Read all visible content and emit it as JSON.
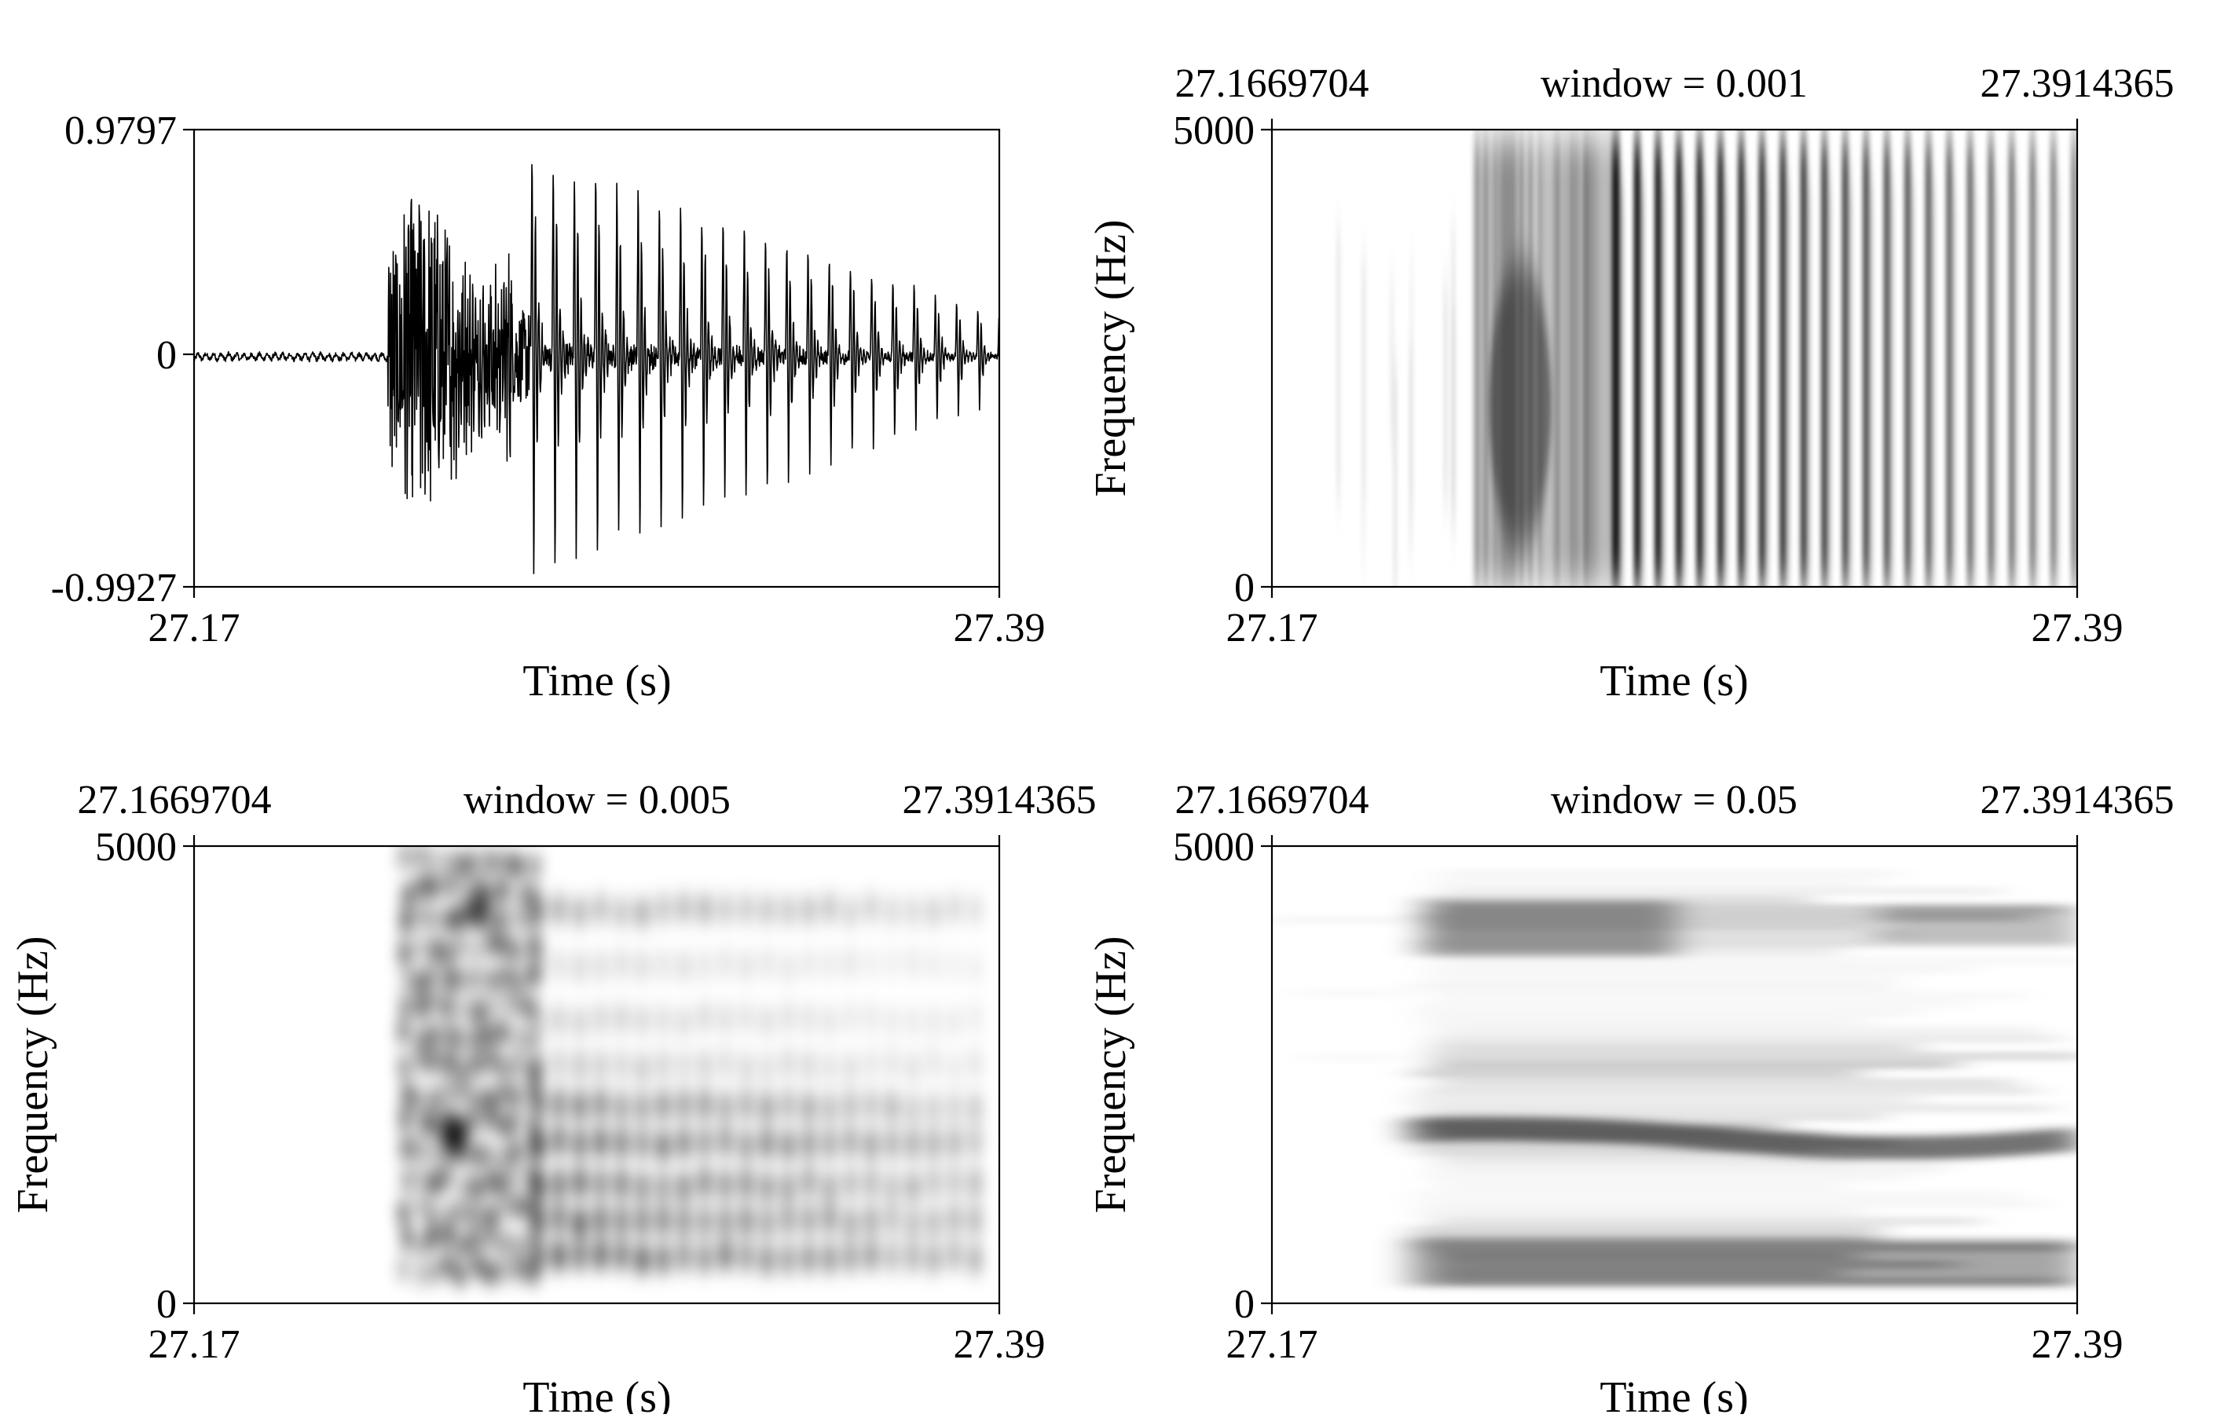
{
  "chart_data": [
    {
      "type": "line",
      "panel": "waveform",
      "xlabel": "Time (s)",
      "ylabel": "",
      "x_tick_labels": [
        "27.17",
        "27.39"
      ],
      "y_tick_labels": [
        "0.9797",
        "0",
        "-0.9927"
      ],
      "xlim": [
        27.17,
        27.39
      ],
      "ylim": [
        -0.9927,
        0.9797
      ],
      "signal": {
        "silence_end_s": 27.223,
        "burst_end_s": 27.257,
        "voicing_start_s": 27.262,
        "peak_amplitude": 0.9797,
        "min_amplitude": -0.9927
      },
      "grid": false,
      "color": "#000000"
    },
    {
      "type": "heatmap",
      "panel": "spectrogram",
      "top_left_label": "27.1669704",
      "title": "window = 0.001",
      "top_right_label": "27.3914365",
      "xlabel": "Time (s)",
      "ylabel": "Frequency (Hz)",
      "x_tick_labels": [
        "27.17",
        "27.39"
      ],
      "y_tick_labels": [
        "5000",
        "0"
      ],
      "xlim": [
        27.1669704,
        27.3914365
      ],
      "ylim": [
        0,
        5000
      ],
      "window_s": 0.001,
      "onset_s": 27.223,
      "voicing_start_s": 27.262
    },
    {
      "type": "heatmap",
      "panel": "spectrogram",
      "top_left_label": "27.1669704",
      "title": "window = 0.005",
      "top_right_label": "27.3914365",
      "xlabel": "Time (s)",
      "ylabel": "Frequency (Hz)",
      "x_tick_labels": [
        "27.17",
        "27.39"
      ],
      "y_tick_labels": [
        "5000",
        "0"
      ],
      "xlim": [
        27.1669704,
        27.3914365
      ],
      "ylim": [
        0,
        5000
      ],
      "window_s": 0.005,
      "onset_s": 27.223,
      "voicing_start_s": 27.262
    },
    {
      "type": "heatmap",
      "panel": "spectrogram",
      "top_left_label": "27.1669704",
      "title": "window = 0.05",
      "top_right_label": "27.3914365",
      "xlabel": "Time (s)",
      "ylabel": "Frequency (Hz)",
      "x_tick_labels": [
        "27.17",
        "27.39"
      ],
      "y_tick_labels": [
        "5000",
        "0"
      ],
      "xlim": [
        27.1669704,
        27.3914365
      ],
      "ylim": [
        0,
        5000
      ],
      "window_s": 0.05,
      "onset_s": 27.205,
      "formant_bands_hz": [
        4200,
        2600,
        1850,
        640,
        320
      ]
    }
  ]
}
